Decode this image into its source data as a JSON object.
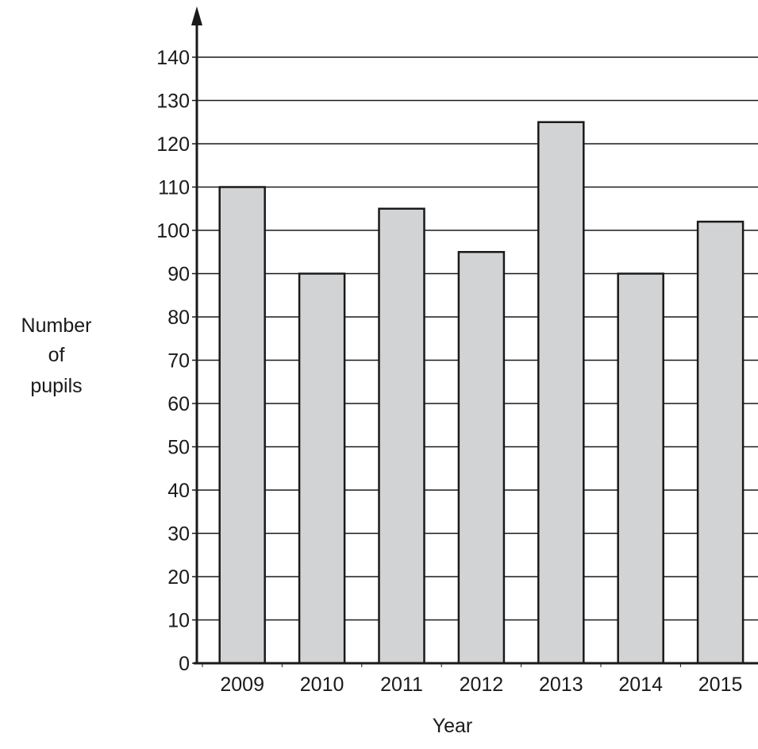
{
  "chart_data": {
    "type": "bar",
    "categories": [
      "2009",
      "2010",
      "2011",
      "2012",
      "2013",
      "2014",
      "2015"
    ],
    "values": [
      110,
      90,
      105,
      95,
      125,
      90,
      102
    ],
    "xlabel": "Year",
    "ylabel_lines": [
      "Number",
      "of",
      "pupils"
    ],
    "ylim": [
      0,
      140
    ],
    "ytick_step": 10,
    "grid": true,
    "bar_color": "#d2d3d5",
    "bar_edge_color": "#1a1a1a"
  }
}
